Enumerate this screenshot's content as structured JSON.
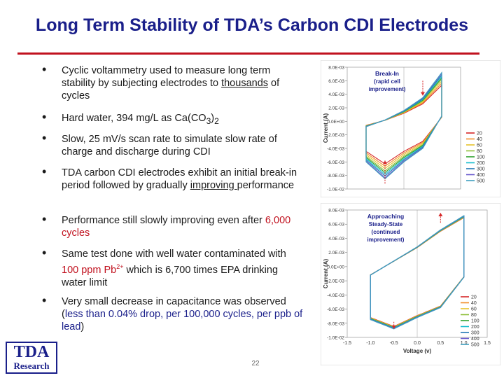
{
  "title": "Long Term Stability of TDA’s Carbon CDI Electrodes",
  "bullets": {
    "b1": {
      "pre": "Cyclic voltammetry used to measure long term stability by subjecting electrodes to ",
      "under": "thousands",
      "post": " of cycles"
    },
    "b2": {
      "pre": "Hard water, 394 mg/L as Ca(CO",
      "sub": "3",
      "mid": ")",
      "sub2": "2"
    },
    "b3": "Slow, 25 mV/s scan rate to simulate slow rate of charge and discharge during CDI",
    "b4": {
      "pre": "TDA carbon CDI electrodes exhibit an initial break-in period followed by gradually ",
      "under": "improving ",
      "post": "performance"
    },
    "b5": {
      "pre": "Performance still slowly improving even after ",
      "red": "6,000 cycles"
    },
    "b6": {
      "pre": "Same test done with well water contaminated with ",
      "red": "100 ppm Pb",
      "sup": "2+",
      "post": " which is 6,700 times EPA drinking water limit"
    },
    "b7": {
      "pre": "Very small decrease in capacitance was observed (",
      "blue": "less than 0.04% drop, per 100,000 cycles, per ppb of lead",
      "post": ")"
    }
  },
  "logo": {
    "line1": "TDA",
    "line2": "Research"
  },
  "page_number": "22",
  "chart_data": [
    {
      "type": "line",
      "title": "",
      "annotation": "Break-In (rapid cell improvement)",
      "annotation_lines": [
        "Break-In",
        "(rapid cell",
        "improvement)"
      ],
      "xlabel": "",
      "ylabel": "Current (A)",
      "xlim": [
        -1.5,
        1.5
      ],
      "ylim": [
        -0.01,
        0.008
      ],
      "y_ticks": [
        "8.0E-03",
        "6.0E-03",
        "4.0E-03",
        "2.0E-03",
        "0.0E+00",
        "-2.0E-03",
        "-4.0E-03",
        "-6.0E-03",
        "-8.0E-03",
        "-1.0E-02"
      ],
      "y_tick_values": [
        0.008,
        0.006,
        0.004,
        0.002,
        0,
        -0.002,
        -0.004,
        -0.006,
        -0.008,
        -0.01
      ],
      "legend": [
        "20",
        "40",
        "60",
        "80",
        "100",
        "200",
        "300",
        "400",
        "500"
      ],
      "legend_position": "bottom-right",
      "series_colors": [
        "#d62728",
        "#f28e2b",
        "#e6c229",
        "#8fbf3a",
        "#2ca02c",
        "#17becf",
        "#1f77b4",
        "#6a5acd",
        "#3f9fbf"
      ],
      "series_scale": [
        0.74,
        0.78,
        0.82,
        0.86,
        0.89,
        0.92,
        0.95,
        0.98,
        1.0
      ],
      "envelope": {
        "x": [
          -1.0,
          -0.5,
          0.0,
          0.5,
          1.0
        ],
        "upper": [
          -0.0008,
          0.0002,
          0.0016,
          0.0035,
          0.0072
        ],
        "lower": [
          -0.006,
          -0.0085,
          -0.006,
          -0.004,
          0.0008
        ]
      },
      "arrow": {
        "x": 0.5,
        "from": 0.006,
        "to": 0.0038
      },
      "arrow_lower": {
        "x": -0.5,
        "from": -0.0092,
        "to": -0.0058
      }
    },
    {
      "type": "line",
      "title": "",
      "annotation": "Approaching Steady-State (continued improvement)",
      "annotation_lines": [
        "Approaching",
        "Steady-State",
        "(continued",
        "improvement)"
      ],
      "xlabel": "Voltage (v)",
      "ylabel": "Current (A)",
      "xlim": [
        -1.5,
        1.5
      ],
      "ylim": [
        -0.01,
        0.008
      ],
      "x_ticks": [
        "-1.5",
        "-1.0",
        "-0.5",
        "0.0",
        "0.5",
        "1.0",
        "1.5"
      ],
      "x_tick_values": [
        -1.5,
        -1.0,
        -0.5,
        0,
        0.5,
        1.0,
        1.5
      ],
      "y_ticks": [
        "8.0E-03",
        "6.0E-03",
        "4.0E-03",
        "2.0E-03",
        "0.0E+00",
        "-2.0E-03",
        "-4.0E-03",
        "-6.0E-03",
        "-8.0E-03",
        "-1.0E-02"
      ],
      "y_tick_values": [
        0.008,
        0.006,
        0.004,
        0.002,
        0,
        -0.002,
        -0.004,
        -0.006,
        -0.008,
        -0.01
      ],
      "legend": [
        "20",
        "40",
        "60",
        "80",
        "100",
        "200",
        "300",
        "400",
        "500"
      ],
      "legend_position": "bottom-right",
      "series_colors": [
        "#d62728",
        "#f28e2b",
        "#e6c229",
        "#8fbf3a",
        "#2ca02c",
        "#17becf",
        "#1f77b4",
        "#6a5acd",
        "#3f9fbf"
      ],
      "series_scale": [
        0.96,
        0.965,
        0.97,
        0.975,
        0.98,
        0.985,
        0.99,
        0.995,
        1.0
      ],
      "envelope": {
        "x": [
          -1.0,
          -0.5,
          0.0,
          0.5,
          1.0
        ],
        "upper": [
          -0.0012,
          0.0008,
          0.0028,
          0.0052,
          0.0072
        ],
        "lower": [
          -0.0075,
          -0.0088,
          -0.0072,
          -0.0058,
          -0.0015
        ]
      },
      "arrow": {
        "x": 0.5,
        "from": 0.0062,
        "to": 0.0076
      },
      "arrow_lower": {
        "x": -0.5,
        "from": -0.0078,
        "to": -0.0088
      }
    }
  ]
}
